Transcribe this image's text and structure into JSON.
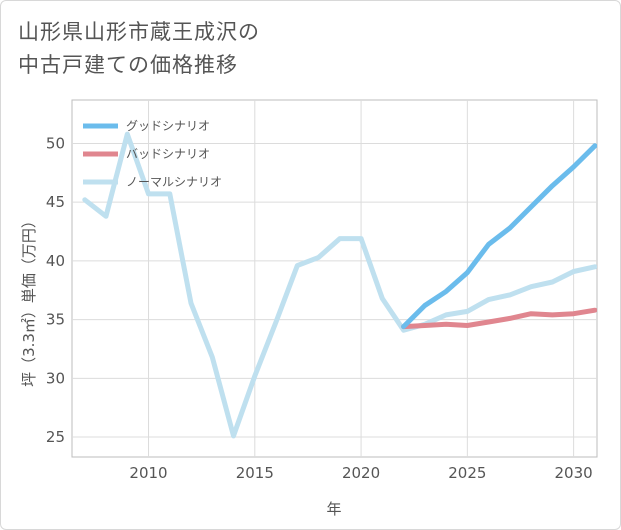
{
  "title_line1": "山形県山形市蔵王成沢の",
  "title_line2": "中古戸建ての価格推移",
  "chart_data": {
    "type": "line",
    "xlabel": "年",
    "ylabel": "坪（3.3㎡）単価（万円）",
    "xlim": [
      2006.4,
      2031.1
    ],
    "ylim": [
      23.3,
      53.7
    ],
    "xticks": [
      2010,
      2015,
      2020,
      2025,
      2030
    ],
    "yticks": [
      25,
      30,
      35,
      40,
      45,
      50
    ],
    "legend_position": "top-left",
    "series": [
      {
        "name": "グッドシナリオ",
        "color": "#6bbcec",
        "x": [
          2022,
          2023,
          2024,
          2025,
          2026,
          2027,
          2028,
          2029,
          2030,
          2031
        ],
        "values": [
          34.4,
          36.2,
          37.4,
          39.0,
          41.4,
          42.8,
          44.6,
          46.4,
          48.0,
          49.8
        ]
      },
      {
        "name": "バッドシナリオ",
        "color": "#e0868f",
        "x": [
          2022,
          2023,
          2024,
          2025,
          2026,
          2027,
          2028,
          2029,
          2030,
          2031
        ],
        "values": [
          34.4,
          34.5,
          34.6,
          34.5,
          34.8,
          35.1,
          35.5,
          35.4,
          35.5,
          35.8
        ]
      },
      {
        "name": "ノーマルシナリオ",
        "color": "#bfe0ef",
        "x": [
          2007,
          2008,
          2009,
          2010,
          2011,
          2012,
          2013,
          2014,
          2015,
          2016,
          2017,
          2018,
          2019,
          2020,
          2021,
          2022,
          2023,
          2024,
          2025,
          2026,
          2027,
          2028,
          2029,
          2030,
          2031
        ],
        "values": [
          45.2,
          43.8,
          50.8,
          45.7,
          45.7,
          36.4,
          31.8,
          25.1,
          30.2,
          34.8,
          39.6,
          40.3,
          41.9,
          41.9,
          36.8,
          34.1,
          34.6,
          35.4,
          35.7,
          36.7,
          37.1,
          37.8,
          38.2,
          39.1,
          39.5
        ]
      }
    ]
  }
}
